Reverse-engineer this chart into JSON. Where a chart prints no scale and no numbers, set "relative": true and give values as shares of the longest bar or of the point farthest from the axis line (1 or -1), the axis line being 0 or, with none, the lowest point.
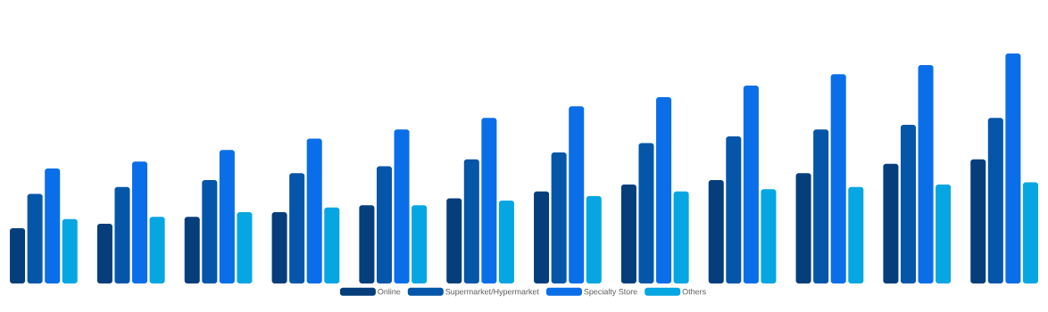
{
  "chart_data": {
    "type": "bar",
    "relative": true,
    "legend": "bottom",
    "categories": [
      null,
      null,
      null,
      null,
      null,
      null,
      null,
      null,
      null,
      null,
      null,
      null
    ],
    "series": [
      {
        "name": "Online",
        "color": "#063e7c",
        "values": [
          0.24,
          0.26,
          0.29,
          0.31,
          0.34,
          0.37,
          0.4,
          0.43,
          0.45,
          0.48,
          0.52,
          0.54
        ]
      },
      {
        "name": "Supermarket/Hypermarket",
        "color": "#0556a8",
        "values": [
          0.39,
          0.42,
          0.45,
          0.48,
          0.51,
          0.54,
          0.57,
          0.61,
          0.64,
          0.67,
          0.69,
          0.72
        ]
      },
      {
        "name": "Specialty Store",
        "color": "#0a6ee8",
        "values": [
          0.5,
          0.53,
          0.58,
          0.63,
          0.67,
          0.72,
          0.77,
          0.81,
          0.86,
          0.91,
          0.95,
          1
        ]
      },
      {
        "name": "Others",
        "color": "#06a6e3",
        "values": [
          0.28,
          0.29,
          0.31,
          0.33,
          0.34,
          0.36,
          0.38,
          0.4,
          0.41,
          0.42,
          0.43,
          0.44
        ]
      }
    ]
  }
}
